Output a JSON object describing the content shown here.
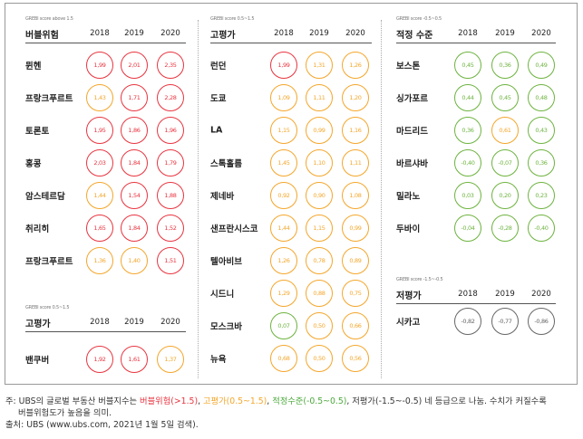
{
  "colors": {
    "bubble": "#e8343f",
    "over": "#f4a62a",
    "fair": "#6db33f",
    "under": "#666666"
  },
  "years": [
    "2018",
    "2019",
    "2020"
  ],
  "sections": [
    {
      "id": "s1",
      "sub": "GREBI score above 1.5",
      "title": "버블위험",
      "rows": [
        {
          "city": "뮌헨",
          "vals": [
            [
              "1,99",
              "bubble"
            ],
            [
              "2,01",
              "bubble"
            ],
            [
              "2,35",
              "bubble"
            ]
          ]
        },
        {
          "city": "프랑크푸르트",
          "vals": [
            [
              "1,43",
              "over"
            ],
            [
              "1,71",
              "bubble"
            ],
            [
              "2,28",
              "bubble"
            ]
          ]
        },
        {
          "city": "토론토",
          "vals": [
            [
              "1,95",
              "bubble"
            ],
            [
              "1,86",
              "bubble"
            ],
            [
              "1,96",
              "bubble"
            ]
          ]
        },
        {
          "city": "홍콩",
          "vals": [
            [
              "2,03",
              "bubble"
            ],
            [
              "1,84",
              "bubble"
            ],
            [
              "1,79",
              "bubble"
            ]
          ]
        },
        {
          "city": "암스테르담",
          "vals": [
            [
              "1,44",
              "over"
            ],
            [
              "1,54",
              "bubble"
            ],
            [
              "1,88",
              "bubble"
            ]
          ]
        },
        {
          "city": "취리히",
          "vals": [
            [
              "1,65",
              "bubble"
            ],
            [
              "1,84",
              "bubble"
            ],
            [
              "1,52",
              "bubble"
            ]
          ]
        },
        {
          "city": "프랑크푸르트",
          "vals": [
            [
              "1,36",
              "over"
            ],
            [
              "1,40",
              "over"
            ],
            [
              "1,51",
              "bubble"
            ]
          ]
        }
      ]
    },
    {
      "id": "s2",
      "sub": "GREBI score 0.5~1.5",
      "title": "고평가",
      "rows": [
        {
          "city": "밴쿠버",
          "vals": [
            [
              "1,92",
              "bubble"
            ],
            [
              "1,61",
              "bubble"
            ],
            [
              "1,37",
              "over"
            ]
          ]
        }
      ]
    },
    {
      "id": "s3",
      "sub": "GREBI score 0.5~1.5",
      "title": "고평가",
      "rows": [
        {
          "city": "런던",
          "vals": [
            [
              "1,99",
              "bubble"
            ],
            [
              "1,31",
              "over"
            ],
            [
              "1,26",
              "over"
            ]
          ]
        },
        {
          "city": "도쿄",
          "vals": [
            [
              "1,09",
              "over"
            ],
            [
              "1,11",
              "over"
            ],
            [
              "1,20",
              "over"
            ]
          ]
        },
        {
          "city": "LA",
          "vals": [
            [
              "1,15",
              "over"
            ],
            [
              "0,99",
              "over"
            ],
            [
              "1,16",
              "over"
            ]
          ]
        },
        {
          "city": "스톡홀름",
          "vals": [
            [
              "1,45",
              "over"
            ],
            [
              "1,10",
              "over"
            ],
            [
              "1,11",
              "over"
            ]
          ]
        },
        {
          "city": "제네바",
          "vals": [
            [
              "0,92",
              "over"
            ],
            [
              "0,90",
              "over"
            ],
            [
              "1,08",
              "over"
            ]
          ]
        },
        {
          "city": "샌프란시스코",
          "vals": [
            [
              "1,44",
              "over"
            ],
            [
              "1,15",
              "over"
            ],
            [
              "0,99",
              "over"
            ]
          ]
        },
        {
          "city": "텔아비브",
          "vals": [
            [
              "1,26",
              "over"
            ],
            [
              "0,78",
              "over"
            ],
            [
              "0,89",
              "over"
            ]
          ]
        },
        {
          "city": "시드니",
          "vals": [
            [
              "1,29",
              "over"
            ],
            [
              "0,88",
              "over"
            ],
            [
              "0,75",
              "over"
            ]
          ]
        },
        {
          "city": "모스크바",
          "vals": [
            [
              "0,07",
              "fair"
            ],
            [
              "0,50",
              "over"
            ],
            [
              "0,66",
              "over"
            ]
          ]
        },
        {
          "city": "뉴욕",
          "vals": [
            [
              "0,68",
              "over"
            ],
            [
              "0,50",
              "over"
            ],
            [
              "0,56",
              "over"
            ]
          ]
        }
      ]
    },
    {
      "id": "s4",
      "sub": "GREBI score -0.5~0.5",
      "title": "적정 수준",
      "rows": [
        {
          "city": "보스톤",
          "vals": [
            [
              "0,45",
              "fair"
            ],
            [
              "0,36",
              "fair"
            ],
            [
              "0,49",
              "fair"
            ]
          ]
        },
        {
          "city": "싱가포르",
          "vals": [
            [
              "0,44",
              "fair"
            ],
            [
              "0,45",
              "fair"
            ],
            [
              "0,48",
              "fair"
            ]
          ]
        },
        {
          "city": "마드리드",
          "vals": [
            [
              "0,36",
              "fair"
            ],
            [
              "0,61",
              "over"
            ],
            [
              "0,43",
              "fair"
            ]
          ]
        },
        {
          "city": "바르샤바",
          "vals": [
            [
              "-0,40",
              "fair"
            ],
            [
              "-0,07",
              "fair"
            ],
            [
              "0,36",
              "fair"
            ]
          ]
        },
        {
          "city": "밀라노",
          "vals": [
            [
              "0,03",
              "fair"
            ],
            [
              "0,20",
              "fair"
            ],
            [
              "0,23",
              "fair"
            ]
          ]
        },
        {
          "city": "두바이",
          "vals": [
            [
              "-0,04",
              "fair"
            ],
            [
              "-0,28",
              "fair"
            ],
            [
              "-0,40",
              "fair"
            ]
          ]
        }
      ]
    },
    {
      "id": "s5",
      "sub": "GREBI score -1.5~-0.5",
      "title": "저평가",
      "rows": [
        {
          "city": "시카고",
          "vals": [
            [
              "-0,82",
              "under"
            ],
            [
              "-0,77",
              "under"
            ],
            [
              "-0,86",
              "under"
            ]
          ]
        }
      ]
    }
  ],
  "note": {
    "prefix": "주: UBS의 글로벌 부동산 버블지수는 ",
    "bubble": "버블위험(>1.5)",
    "over": "고평가(0.5~1.5)",
    "fair": "적정수준(-0.5~0.5)",
    "rest": ", 저평가(-1.5~-0.5) 네 등급으로 나눔. 수치가 커질수록",
    "line2": "버블위험도가 높음을 의미.",
    "source": "출처: UBS (www.ubs.com, 2021년 1월 5일 검색)."
  }
}
